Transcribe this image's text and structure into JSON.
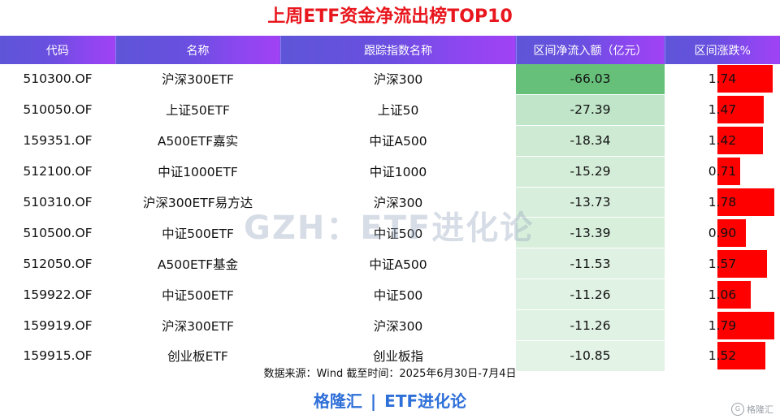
{
  "title": "上周ETF资金净流出榜TOP10",
  "headers": [
    "代码",
    "名称",
    "跟踪指数名称",
    "区间净流入额（亿元）",
    "区间涨跌%"
  ],
  "colors": {
    "flow_strong": "#67c07a",
    "flow_light": "#eaf6ec",
    "change_bar": "#ff0000",
    "title": "#e8161d",
    "footer": "#2e6fd8"
  },
  "rows": [
    {
      "code": "510300.OF",
      "name": "沪深300ETF",
      "index": "沪深300",
      "flow": "-66.03",
      "change": "1.74"
    },
    {
      "code": "510050.OF",
      "name": "上证50ETF",
      "index": "上证50",
      "flow": "-27.39",
      "change": "1.47"
    },
    {
      "code": "159351.OF",
      "name": "A500ETF嘉实",
      "index": "中证A500",
      "flow": "-18.34",
      "change": "1.42"
    },
    {
      "code": "512100.OF",
      "name": "中证1000ETF",
      "index": "中证1000",
      "flow": "-15.29",
      "change": "0.71"
    },
    {
      "code": "510310.OF",
      "name": "沪深300ETF易方达",
      "index": "沪深300",
      "flow": "-13.73",
      "change": "1.78"
    },
    {
      "code": "510500.OF",
      "name": "中证500ETF",
      "index": "中证500",
      "flow": "-13.39",
      "change": "0.90"
    },
    {
      "code": "512050.OF",
      "name": "A500ETF基金",
      "index": "中证A500",
      "flow": "-11.53",
      "change": "1.57"
    },
    {
      "code": "159922.OF",
      "name": "中证500ETF",
      "index": "中证500",
      "flow": "-11.26",
      "change": "1.06"
    },
    {
      "code": "159919.OF",
      "name": "沪深300ETF",
      "index": "沪深300",
      "flow": "-11.26",
      "change": "1.79"
    },
    {
      "code": "159915.OF",
      "name": "创业板ETF",
      "index": "创业板指",
      "flow": "-10.85",
      "change": "1.52"
    }
  ],
  "watermark": "GZH：ETF进化论",
  "source": "数据来源：Wind 截至时间：2025年6月30日-7月4日",
  "footer": {
    "left": "格隆汇",
    "sep": "|",
    "right": "ETF进化论"
  },
  "logo": {
    "badge": "G",
    "text": "格隆汇"
  }
}
